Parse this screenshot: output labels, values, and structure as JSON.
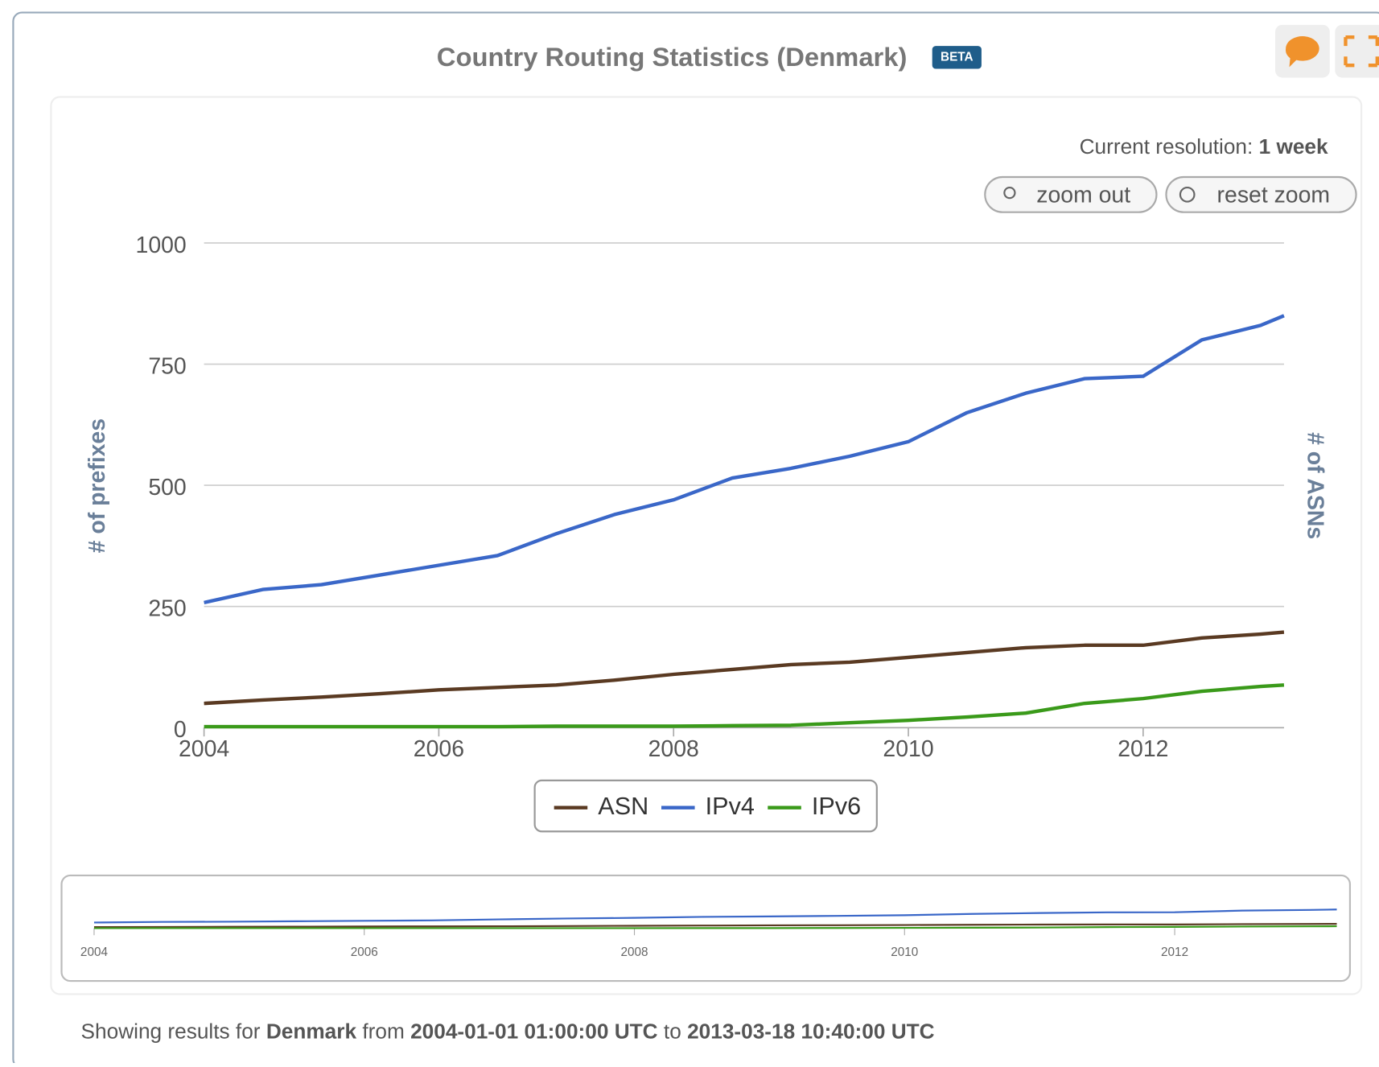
{
  "header": {
    "title": "Country Routing Statistics (Denmark)",
    "badge": "BETA"
  },
  "resolution": {
    "label": "Current resolution:",
    "value": "1 week"
  },
  "buttons": {
    "zoom_out": "zoom out",
    "reset_zoom": "reset zoom"
  },
  "chart_data": {
    "type": "line",
    "y_label": "# of prefixes",
    "y2_label": "# of ASNs",
    "x": [
      2004,
      2004.5,
      2005,
      2005.5,
      2006,
      2006.5,
      2007,
      2007.5,
      2008,
      2008.5,
      2009,
      2009.5,
      2010,
      2010.5,
      2011,
      2011.5,
      2012,
      2012.5,
      2013,
      2013.2
    ],
    "xlim": [
      2004,
      2013.2
    ],
    "xticks": [
      2004,
      2006,
      2008,
      2010,
      2012
    ],
    "ylim": [
      0,
      1000
    ],
    "yticks": [
      0,
      250,
      500,
      750,
      1000
    ],
    "grid": true,
    "series": [
      {
        "name": "ASN",
        "color": "#5a3a22",
        "values": [
          50,
          57,
          63,
          70,
          78,
          83,
          88,
          98,
          110,
          120,
          130,
          135,
          145,
          155,
          165,
          170,
          170,
          185,
          193,
          197
        ]
      },
      {
        "name": "IPv4",
        "color": "#3a67c8",
        "values": [
          258,
          285,
          295,
          315,
          335,
          355,
          400,
          440,
          470,
          515,
          535,
          560,
          590,
          650,
          690,
          720,
          725,
          800,
          830,
          850
        ]
      },
      {
        "name": "IPv6",
        "color": "#3a9a1a",
        "values": [
          2,
          2,
          2,
          2,
          2,
          2,
          3,
          3,
          3,
          4,
          5,
          10,
          15,
          22,
          30,
          50,
          60,
          75,
          85,
          88
        ]
      }
    ]
  },
  "footer": {
    "prefix": "Showing results for",
    "country": "Denmark",
    "from": "from",
    "start": "2004-01-01 01:00:00 UTC",
    "to": "to",
    "end": "2013-03-18 10:40:00 UTC"
  }
}
